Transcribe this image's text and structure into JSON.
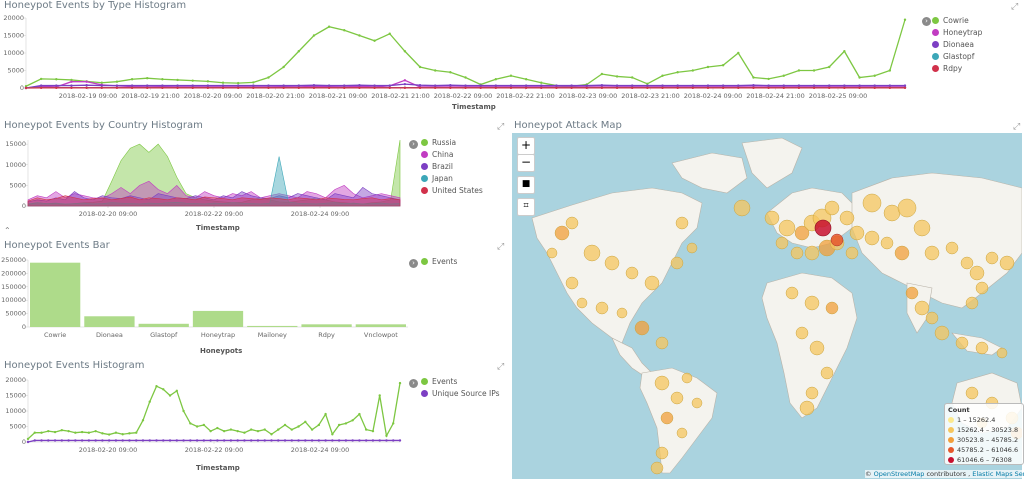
{
  "colors": {
    "green": "#7dc742",
    "magenta": "#c13cc2",
    "purple": "#7c3fc3",
    "teal": "#3ca7b8",
    "red": "#d1314b",
    "bar_green": "#aedb8a",
    "map_water": "#aad3df",
    "map_land": "#f8f8f4"
  },
  "type_histogram": {
    "title": "Honeypot Events by Type Histogram",
    "xlabel": "Timestamp",
    "legend": [
      "Cowrie",
      "Honeytrap",
      "Dionaea",
      "Glastopf",
      "Rdpy"
    ],
    "expand_icon": "expand-icon",
    "chart_data": {
      "type": "line",
      "yticks": [
        "20000",
        "15000",
        "10000",
        "5000",
        "0"
      ],
      "ylim": [
        0,
        20000
      ],
      "xticks": [
        "2018-02-19 09:00",
        "2018-02-19 21:00",
        "2018-02-20 09:00",
        "2018-02-20 21:00",
        "2018-02-21 09:00",
        "2018-02-21 21:00",
        "2018-02-22 09:00",
        "2018-02-22 21:00",
        "2018-02-23 09:00",
        "2018-02-23 21:00",
        "2018-02-24 09:00",
        "2018-02-24 21:00",
        "2018-02-25 09:00"
      ],
      "series": [
        {
          "name": "Cowrie",
          "values": [
            500,
            2600,
            2500,
            2300,
            1900,
            1500,
            1800,
            2500,
            2800,
            2500,
            2300,
            2100,
            1900,
            1500,
            1400,
            1600,
            3000,
            6000,
            10500,
            15000,
            17500,
            16500,
            15000,
            13500,
            15500,
            10500,
            6000,
            5000,
            4500,
            3000,
            1000,
            2500,
            3500,
            2500,
            1500,
            700,
            500,
            1000,
            4000,
            3300,
            3000,
            1200,
            3500,
            4500,
            5000,
            6000,
            6500,
            10000,
            3000,
            2600,
            3500,
            5000,
            5000,
            6000,
            10500,
            3000,
            3500,
            5000,
            19500
          ]
        },
        {
          "name": "Honeytrap",
          "values": [
            0,
            500,
            300,
            1800,
            1800,
            900,
            600,
            400,
            300,
            400,
            300,
            300,
            300,
            300,
            300,
            300,
            300,
            400,
            300,
            500,
            400,
            300,
            500,
            300,
            600,
            2200,
            300,
            300,
            300,
            300,
            300,
            300,
            300,
            300,
            300,
            300,
            300,
            300,
            300,
            300,
            300,
            300,
            300,
            300,
            300,
            300,
            300,
            300,
            300,
            300,
            300,
            300,
            300,
            300,
            300,
            300,
            300,
            300,
            300
          ]
        },
        {
          "name": "Dionaea",
          "values": [
            0,
            700,
            700,
            700,
            800,
            700,
            700,
            700,
            700,
            700,
            700,
            700,
            700,
            700,
            700,
            700,
            700,
            700,
            700,
            800,
            700,
            700,
            800,
            700,
            700,
            1100,
            800,
            700,
            800,
            700,
            700,
            700,
            700,
            700,
            700,
            700,
            700,
            700,
            800,
            700,
            700,
            700,
            700,
            700,
            700,
            700,
            700,
            700,
            800,
            700,
            700,
            700,
            700,
            700,
            700,
            700,
            700,
            700,
            700
          ]
        },
        {
          "name": "Glastopf",
          "values": [
            0,
            100,
            100,
            100,
            100,
            100,
            100,
            100,
            100,
            100,
            100,
            100,
            100,
            100,
            100,
            100,
            100,
            100,
            100,
            100,
            100,
            100,
            100,
            100,
            100,
            100,
            100,
            100,
            100,
            100,
            100,
            100,
            100,
            100,
            100,
            100,
            100,
            100,
            100,
            100,
            100,
            100,
            100,
            100,
            100,
            100,
            100,
            100,
            100,
            100,
            100,
            100,
            100,
            100,
            100,
            100,
            100,
            100,
            100
          ]
        },
        {
          "name": "Rdpy",
          "values": [
            0,
            50,
            50,
            50,
            50,
            50,
            50,
            50,
            50,
            50,
            50,
            50,
            50,
            50,
            50,
            50,
            50,
            50,
            50,
            50,
            50,
            50,
            50,
            50,
            50,
            50,
            50,
            50,
            50,
            50,
            50,
            50,
            50,
            50,
            50,
            50,
            50,
            50,
            50,
            50,
            50,
            50,
            50,
            50,
            50,
            50,
            50,
            50,
            50,
            50,
            50,
            50,
            50,
            50,
            50,
            50,
            50,
            50,
            50
          ]
        }
      ]
    }
  },
  "country_histogram": {
    "title": "Honeypot Events by Country Histogram",
    "xlabel": "Timestamp",
    "legend": [
      "Russia",
      "China",
      "Brazil",
      "Japan",
      "United States"
    ],
    "expand_icon": "expand-icon",
    "chart_data": {
      "type": "area",
      "yticks": [
        "15000",
        "10000",
        "5000",
        "0"
      ],
      "ylim": [
        0,
        16000
      ],
      "xticks": [
        "2018-02-20 09:00",
        "2018-02-22 09:00",
        "2018-02-24 09:00"
      ],
      "series": [
        {
          "name": "Russia",
          "values": [
            300,
            800,
            600,
            500,
            400,
            600,
            800,
            900,
            1200,
            6000,
            11000,
            14000,
            15000,
            13000,
            15000,
            12000,
            7000,
            3000,
            2000,
            1500,
            1200,
            1000,
            800,
            900,
            1500,
            2000,
            1500,
            1000,
            900,
            1200,
            1500,
            2000,
            1500,
            1000,
            800,
            600,
            500,
            800,
            1000,
            1500,
            16000
          ]
        },
        {
          "name": "China",
          "values": [
            1500,
            2500,
            2000,
            3500,
            2000,
            3000,
            2500,
            2000,
            1800,
            3000,
            4500,
            3000,
            5000,
            6000,
            4000,
            3000,
            5000,
            2500,
            2000,
            3500,
            2500,
            2000,
            3000,
            2500,
            3500,
            2000,
            2500,
            3000,
            2500,
            2000,
            3500,
            3000,
            2000,
            4000,
            5000,
            3000,
            2000,
            2500,
            3000,
            2500,
            2000
          ]
        },
        {
          "name": "Brazil",
          "values": [
            1000,
            1500,
            1200,
            2000,
            1500,
            3500,
            2000,
            1500,
            2500,
            2000,
            1800,
            2500,
            2000,
            1500,
            3000,
            2500,
            2000,
            1800,
            2500,
            2000,
            1500,
            2500,
            2000,
            3500,
            2500,
            2000,
            1800,
            2500,
            2000,
            3000,
            2500,
            2000,
            1500,
            3000,
            2500,
            2000,
            4500,
            3000,
            2500,
            2000,
            1500
          ]
        },
        {
          "name": "Japan",
          "values": [
            500,
            800,
            600,
            700,
            500,
            600,
            700,
            500,
            600,
            800,
            700,
            600,
            500,
            700,
            600,
            800,
            900,
            700,
            600,
            500,
            700,
            600,
            800,
            700,
            600,
            500,
            700,
            12000,
            1000,
            700,
            600,
            500,
            700,
            800,
            600,
            700,
            500,
            600,
            700,
            500,
            600
          ]
        },
        {
          "name": "United States",
          "values": [
            1200,
            2000,
            1500,
            1800,
            2500,
            2000,
            1500,
            1800,
            2000,
            1500,
            1800,
            2200,
            1500,
            2000,
            1800,
            1500,
            2000,
            1800,
            1500,
            2200,
            2000,
            1800,
            1500,
            2000,
            1800,
            1600,
            2000,
            1800,
            1500,
            2000,
            1800,
            1500,
            2000,
            1800,
            1600,
            1500,
            1800,
            2000,
            1500,
            1800,
            1500
          ]
        }
      ]
    }
  },
  "events_bar": {
    "title": "Honeypot Events Bar",
    "xlabel": "Honeypots",
    "legend": [
      "Events"
    ],
    "expand_icon": "expand-icon",
    "chart_data": {
      "type": "bar",
      "categories": [
        "Cowrie",
        "Dionaea",
        "Glastopf",
        "Honeytrap",
        "Mailoney",
        "Rdpy",
        "Vnclowpot"
      ],
      "values": [
        240000,
        40000,
        12000,
        60000,
        4000,
        10000,
        10000
      ],
      "yticks": [
        "250000",
        "200000",
        "150000",
        "100000",
        "50000",
        "0"
      ],
      "ylim": [
        0,
        250000
      ]
    }
  },
  "events_histogram": {
    "title": "Honeypot Events Histogram",
    "xlabel": "Timestamp",
    "legend": [
      "Events",
      "Unique Source IPs"
    ],
    "expand_icon": "expand-icon",
    "chart_data": {
      "type": "line",
      "yticks": [
        "20000",
        "15000",
        "10000",
        "5000",
        "0"
      ],
      "ylim": [
        0,
        20000
      ],
      "xticks": [
        "2018-02-20 09:00",
        "2018-02-22 09:00",
        "2018-02-24 09:00"
      ],
      "series": [
        {
          "name": "Events",
          "values": [
            1000,
            3000,
            3000,
            3500,
            3200,
            3800,
            3500,
            3000,
            3200,
            3000,
            3500,
            2800,
            2400,
            3000,
            2500,
            2800,
            3000,
            7000,
            13000,
            18000,
            17000,
            15000,
            16500,
            10000,
            6000,
            5000,
            5500,
            3500,
            4500,
            3500,
            4000,
            3500,
            3000,
            4000,
            3500,
            4000,
            2500,
            4000,
            5500,
            4000,
            5000,
            6500,
            4000,
            5500,
            9000,
            2500,
            5500,
            6000,
            7000,
            9000,
            4000,
            3500,
            15000,
            2000,
            6000,
            19000
          ]
        },
        {
          "name": "Unique Source IPs",
          "values": [
            0,
            500,
            500,
            500,
            500,
            500,
            500,
            500,
            500,
            500,
            500,
            500,
            500,
            500,
            500,
            500,
            500,
            500,
            500,
            500,
            500,
            500,
            500,
            500,
            500,
            500,
            500,
            500,
            500,
            500,
            500,
            500,
            500,
            500,
            500,
            500,
            500,
            500,
            500,
            500,
            500,
            500,
            500,
            500,
            500,
            500,
            500,
            500,
            500,
            500,
            500,
            500,
            500,
            500,
            500,
            500
          ]
        }
      ]
    }
  },
  "attack_map": {
    "title": "Honeypot Attack Map",
    "zoom_in": "+",
    "zoom_out": "−",
    "fullscreen_icon": "fullscreen-icon",
    "crop_icon": "crop-icon",
    "legend_title": "Count",
    "legend_ranges": [
      "1 – 15262.4",
      "15262.4 – 30523.8",
      "30523.8 – 45785.2",
      "45785.2 – 61046.6",
      "61046.6 – 76308"
    ],
    "legend_colors": [
      "#fce98e",
      "#f6c65d",
      "#f29f3a",
      "#e5582b",
      "#c8102e"
    ],
    "attribution_prefix": "© ",
    "attribution_osm": "OpenStreetMap",
    "attribution_mid": " contributors , ",
    "attribution_ems": "Elastic Maps Service"
  }
}
